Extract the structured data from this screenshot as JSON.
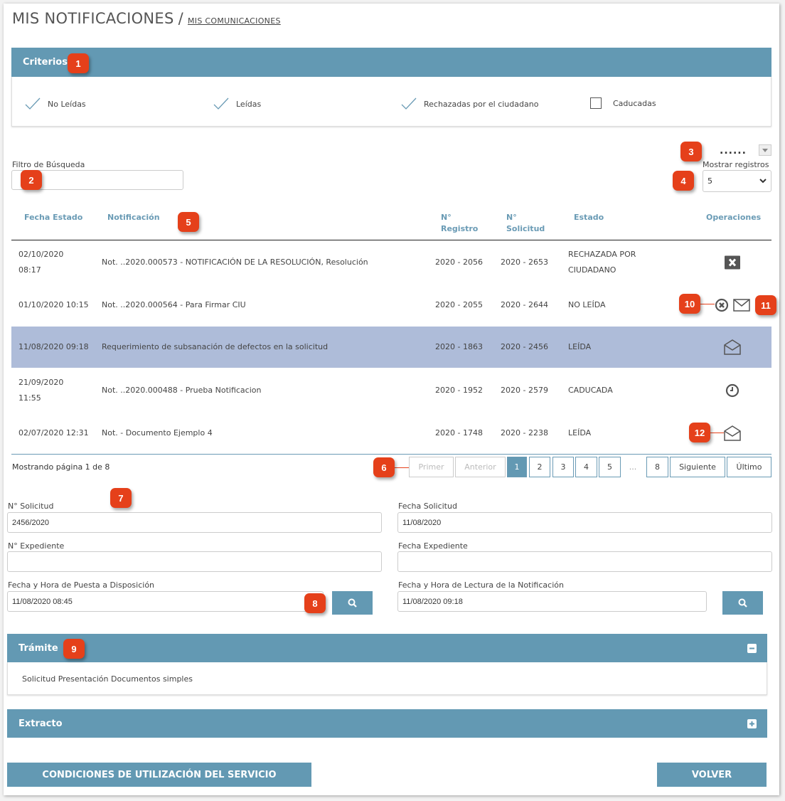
{
  "header": {
    "title": "MIS NOTIFICACIONES",
    "separator": "/",
    "link": "MIS COMUNICACIONES"
  },
  "criterios": {
    "title": "Criterios",
    "items": [
      {
        "label": "No Leídas",
        "checked": true
      },
      {
        "label": "Leídas",
        "checked": true
      },
      {
        "label": "Rechazadas por el ciudadano",
        "checked": true
      },
      {
        "label": "Caducadas",
        "checked": false
      }
    ]
  },
  "filter": {
    "label": "Filtro de Búsqueda",
    "value": ""
  },
  "records": {
    "dots": "......",
    "label": "Mostrar registros",
    "value": "5"
  },
  "table": {
    "headers": [
      "Fecha Estado",
      "Notificación",
      "N° Registro",
      "N° Solicitud",
      "Estado",
      "Operaciones"
    ],
    "rows": [
      {
        "fecha": "02/10/2020 08:17",
        "notif": "Not. ..2020.000573 - NOTIFICACIÓN DE LA RESOLUCIÓN, Resolución",
        "registro": "2020 - 2056",
        "solicitud": "2020 - 2653",
        "estado": "RECHAZADA POR CIUDADANO",
        "ops": [
          "close-square-icon"
        ]
      },
      {
        "fecha": "01/10/2020 10:15",
        "notif": "Not. ..2020.000564 - Para Firmar CIU",
        "registro": "2020 - 2055",
        "solicitud": "2020 - 2644",
        "estado": "NO LEÍDA",
        "ops": [
          "reject-circle-icon",
          "envelope-closed-icon"
        ]
      },
      {
        "fecha": "11/08/2020 09:18",
        "notif": "Requerimiento de subsanación de defectos en la solicitud",
        "registro": "2020 - 1863",
        "solicitud": "2020 - 2456",
        "estado": "LEÍDA",
        "ops": [
          "envelope-open-icon"
        ],
        "selected": true
      },
      {
        "fecha": "21/09/2020 11:55",
        "notif": "Not. ..2020.000488 - Prueba Notificacion",
        "registro": "2020 - 1952",
        "solicitud": "2020 - 2579",
        "estado": "CADUCADA",
        "ops": [
          "clock-icon"
        ]
      },
      {
        "fecha": "02/07/2020 12:31",
        "notif": "Not. - Documento Ejemplo 4",
        "registro": "2020 - 1748",
        "solicitud": "2020 - 2238",
        "estado": "LEÍDA",
        "ops": [
          "envelope-open-icon"
        ]
      }
    ]
  },
  "pagination": {
    "status": "Mostrando página 1 de 8",
    "first": "Primer",
    "prev": "Anterior",
    "pages": [
      "1",
      "2",
      "3",
      "4",
      "5"
    ],
    "ellipsis": "...",
    "last_page": "8",
    "next": "Siguiente",
    "last": "Último",
    "current": "1"
  },
  "detail": {
    "solicitud": {
      "label": "N° Solicitud",
      "value": "2456/2020"
    },
    "fecha_solicitud": {
      "label": "Fecha Solicitud",
      "value": "11/08/2020"
    },
    "expediente": {
      "label": "N° Expediente",
      "value": ""
    },
    "fecha_expediente": {
      "label": "Fecha Expediente",
      "value": ""
    },
    "puesta": {
      "label": "Fecha y Hora de Puesta a Disposición",
      "value": "11/08/2020 08:45"
    },
    "lectura": {
      "label": "Fecha y Hora de Lectura de la Notificación",
      "value": "11/08/2020 09:18"
    }
  },
  "tramite": {
    "title": "Trámite",
    "body": "Solicitud Presentación Documentos simples"
  },
  "extracto": {
    "title": "Extracto"
  },
  "footer": {
    "conditions": "CONDICIONES DE UTILIZACIÓN DEL SERVICIO",
    "back": "VOLVER"
  },
  "annotations": [
    "1",
    "2",
    "3",
    "4",
    "5",
    "6",
    "7",
    "8",
    "9",
    "10",
    "11",
    "12"
  ],
  "colors": {
    "accent": "#6399b3",
    "selected_row": "#aebcd9",
    "badge": "#e5401a"
  }
}
